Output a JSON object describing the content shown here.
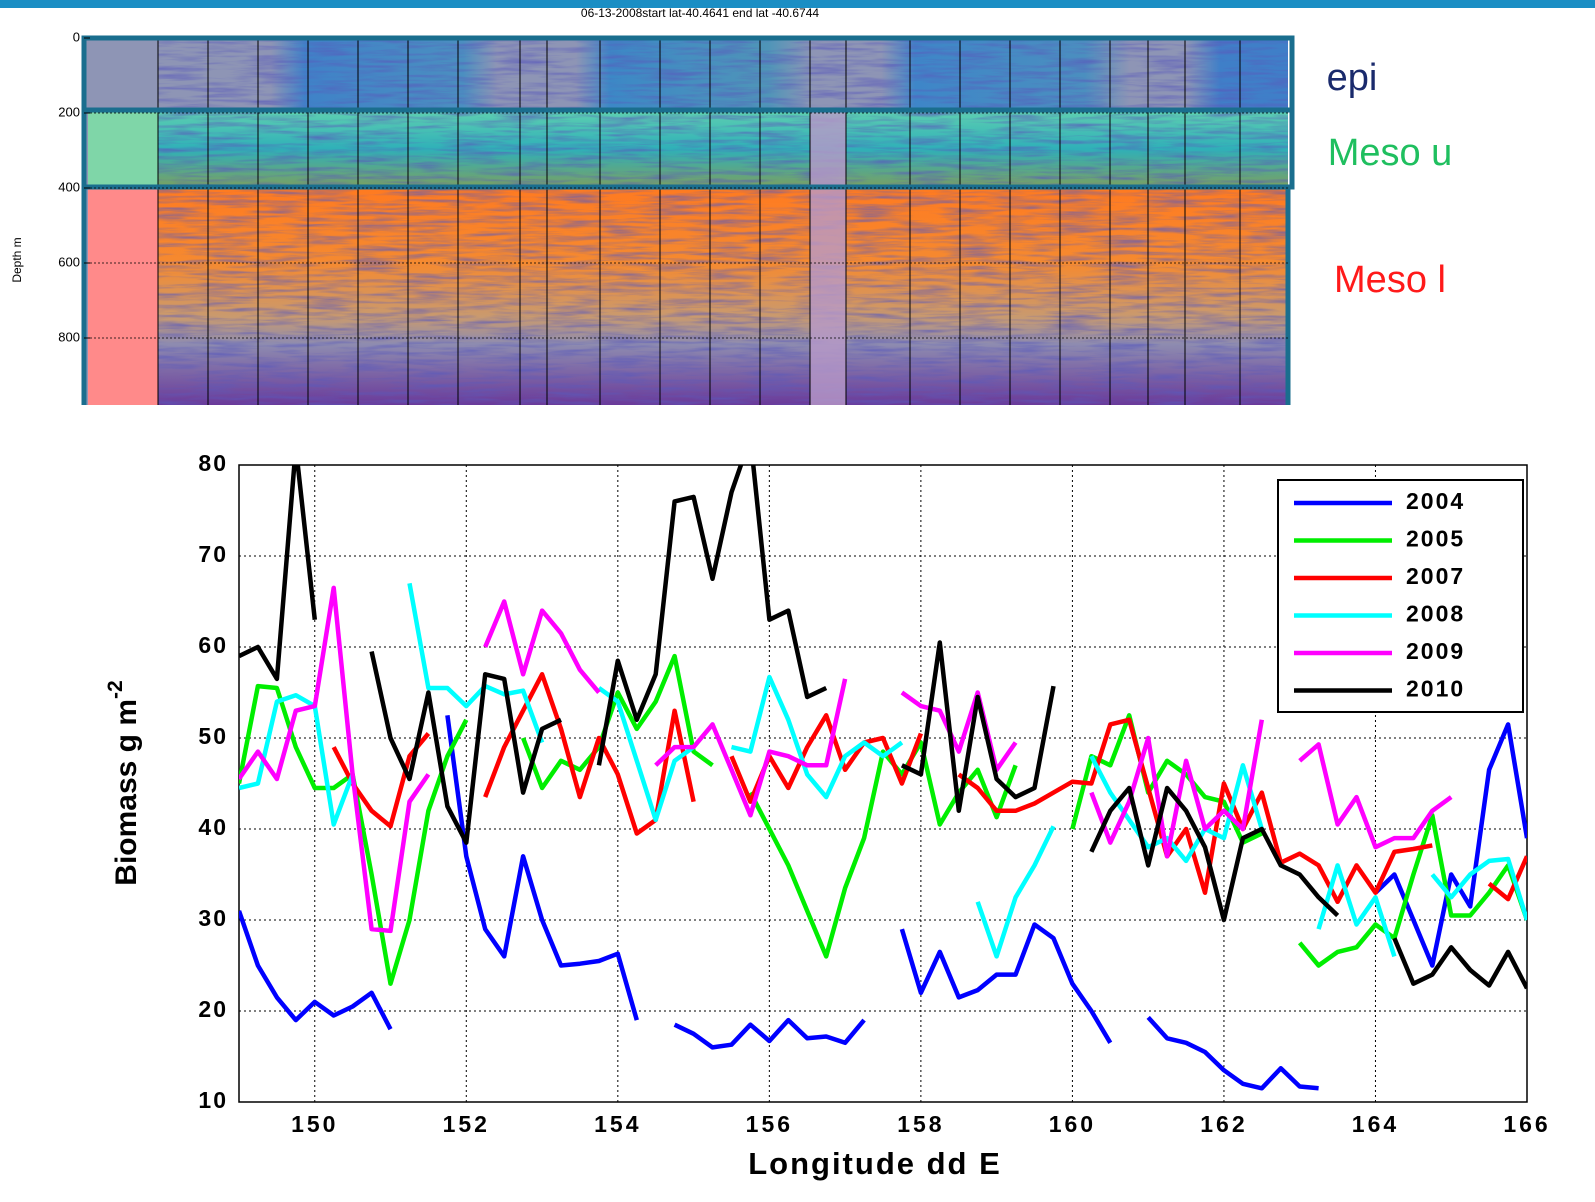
{
  "chart_data": [
    {
      "type": "image",
      "title": "06-13-2008start lat-40.4641 end lat -40.6744",
      "y_label": "Depth m",
      "ylim": [
        0,
        980
      ],
      "yticks": [
        0,
        200,
        400,
        600,
        800
      ],
      "annotations": [
        {
          "text": "epi",
          "color": "#1a2a6c"
        },
        {
          "text": "Meso u",
          "color": "#1fbf5f"
        },
        {
          "text": "Meso l",
          "color": "#ff1a1a"
        }
      ]
    },
    {
      "type": "line",
      "x_label": "Longitude dd E",
      "y_label": {
        "text": "Biomass g m",
        "superscript": "-2"
      },
      "xlim": [
        149,
        166
      ],
      "xticks": [
        150,
        152,
        154,
        156,
        158,
        160,
        162,
        164,
        166
      ],
      "ylim": [
        10,
        80
      ],
      "yticks": [
        10,
        20,
        30,
        40,
        50,
        60,
        70,
        80
      ],
      "grid": true,
      "legend": "upper right",
      "x": [
        149,
        149.25,
        149.5,
        149.75,
        150,
        150.25,
        150.5,
        150.75,
        151,
        151.25,
        151.5,
        151.75,
        152,
        152.25,
        152.5,
        152.75,
        153,
        153.25,
        153.5,
        153.75,
        154,
        154.25,
        154.5,
        154.75,
        155,
        155.25,
        155.5,
        155.75,
        156,
        156.25,
        156.5,
        156.75,
        157,
        157.25,
        157.5,
        157.75,
        158,
        158.25,
        158.5,
        158.75,
        159,
        159.25,
        159.5,
        159.75,
        160,
        160.25,
        160.5,
        160.75,
        161,
        161.25,
        161.5,
        161.75,
        162,
        162.25,
        162.5,
        162.75,
        163,
        163.25,
        163.5,
        163.75,
        164,
        164.25,
        164.5,
        164.75,
        165,
        165.25,
        165.5,
        165.75,
        166
      ],
      "series": [
        {
          "name": "2004",
          "color": "#0000ff",
          "values": [
            31,
            25,
            21.5,
            19,
            21,
            19.5,
            20.5,
            22,
            18,
            null,
            null,
            52.5,
            37,
            29,
            26,
            37,
            30,
            25,
            25.2,
            25.5,
            26.3,
            19,
            null,
            18.5,
            17.5,
            16,
            16.3,
            18.5,
            16.7,
            19,
            17,
            17.2,
            16.5,
            19,
            null,
            29,
            22,
            26.5,
            21.5,
            22.3,
            24,
            24,
            29.5,
            28,
            23,
            20,
            16.5,
            null,
            19.3,
            17,
            16.5,
            15.5,
            13.5,
            12,
            11.5,
            13.7,
            11.7,
            11.5,
            null,
            null,
            33,
            35,
            30,
            25,
            35,
            31.5,
            46.5,
            51.5,
            39
          ]
        },
        {
          "name": "2005",
          "color": "#00ee00",
          "values": [
            45,
            55.7,
            55.5,
            49,
            44.5,
            44.5,
            46,
            35,
            23,
            30,
            42,
            48,
            52,
            null,
            null,
            50,
            44.5,
            47.5,
            46.5,
            49,
            55,
            51,
            54,
            59,
            48.5,
            47,
            null,
            44,
            40,
            36,
            31,
            26,
            33.5,
            39,
            48.5,
            46,
            49.5,
            40.5,
            44,
            46.5,
            41.3,
            47,
            null,
            null,
            40,
            48,
            47,
            52.5,
            44,
            47.5,
            46,
            43.5,
            43,
            38.5,
            39.5,
            null,
            27.5,
            25,
            26.5,
            27,
            29.5,
            28,
            35,
            41.5,
            30.5,
            30.5,
            33,
            36,
            30
          ]
        },
        {
          "name": "2007",
          "color": "#ff0000",
          "values": [
            null,
            null,
            null,
            null,
            null,
            49,
            45,
            42,
            40.3,
            48,
            50.5,
            null,
            null,
            43.5,
            49,
            53,
            57,
            51,
            43.5,
            50,
            46,
            39.5,
            41,
            53,
            43,
            null,
            48,
            43,
            48,
            44.5,
            49,
            52.5,
            46.5,
            49.5,
            50,
            45,
            50.5,
            null,
            46,
            44.5,
            42,
            42,
            42.8,
            44,
            45.2,
            45,
            51.5,
            52,
            44.5,
            37,
            40,
            33,
            45,
            40,
            44,
            36.3,
            37.3,
            36,
            32,
            36,
            33,
            37.5,
            37.8,
            38.2,
            null,
            null,
            34,
            32.3,
            37
          ]
        },
        {
          "name": "2008",
          "color": "#00ffff",
          "values": [
            44.5,
            45,
            54,
            54.7,
            53.5,
            40.5,
            46,
            null,
            null,
            67,
            55.5,
            55.5,
            53.5,
            55.7,
            54.8,
            55.2,
            49.5,
            null,
            null,
            55.5,
            54,
            47.5,
            41,
            47.5,
            49,
            null,
            49,
            48.5,
            56.7,
            52,
            46,
            43.5,
            48,
            49.5,
            48,
            49.5,
            null,
            null,
            null,
            32,
            26,
            32.5,
            36,
            40.3,
            null,
            48,
            44,
            41,
            38,
            39,
            36.5,
            40,
            39,
            47,
            40,
            null,
            null,
            29,
            36,
            29.5,
            32.5,
            26,
            null,
            35,
            32.5,
            35,
            36.5,
            36.7,
            30
          ]
        },
        {
          "name": "2009",
          "color": "#ff00ff",
          "values": [
            45.5,
            48.5,
            45.5,
            53,
            53.5,
            66.5,
            46,
            29,
            28.8,
            43,
            46,
            null,
            null,
            60,
            65,
            57,
            64,
            61.5,
            57.5,
            55,
            null,
            null,
            47,
            49,
            49,
            51.5,
            46.5,
            41.5,
            48.5,
            48,
            47,
            47,
            56.5,
            null,
            null,
            55,
            53.5,
            53,
            48.5,
            55,
            46.5,
            49.5,
            null,
            null,
            null,
            44,
            38.5,
            43,
            50,
            37,
            47.5,
            40,
            42,
            40,
            52,
            null,
            47.5,
            49.3,
            40.5,
            43.5,
            38,
            39,
            39,
            42,
            43.5,
            null,
            null,
            null,
            null
          ]
        },
        {
          "name": "2010",
          "color": "#000000",
          "values": [
            59,
            60,
            56.5,
            82,
            63,
            null,
            null,
            59.5,
            50,
            45.5,
            55,
            42.5,
            38.5,
            57,
            56.5,
            44,
            51,
            52,
            null,
            47,
            58.5,
            52,
            57,
            76,
            76.5,
            67.5,
            77,
            83,
            63,
            64,
            54.5,
            55.5,
            null,
            null,
            null,
            47,
            46,
            60.5,
            42,
            54.5,
            45.5,
            43.5,
            44.5,
            55.7,
            null,
            37.5,
            42,
            44.5,
            36,
            44.5,
            42,
            38,
            30,
            39,
            40,
            36,
            35,
            32.5,
            30.5,
            null,
            null,
            28,
            23,
            24,
            27,
            24.5,
            22.8,
            26.5,
            22.5
          ]
        }
      ]
    }
  ]
}
